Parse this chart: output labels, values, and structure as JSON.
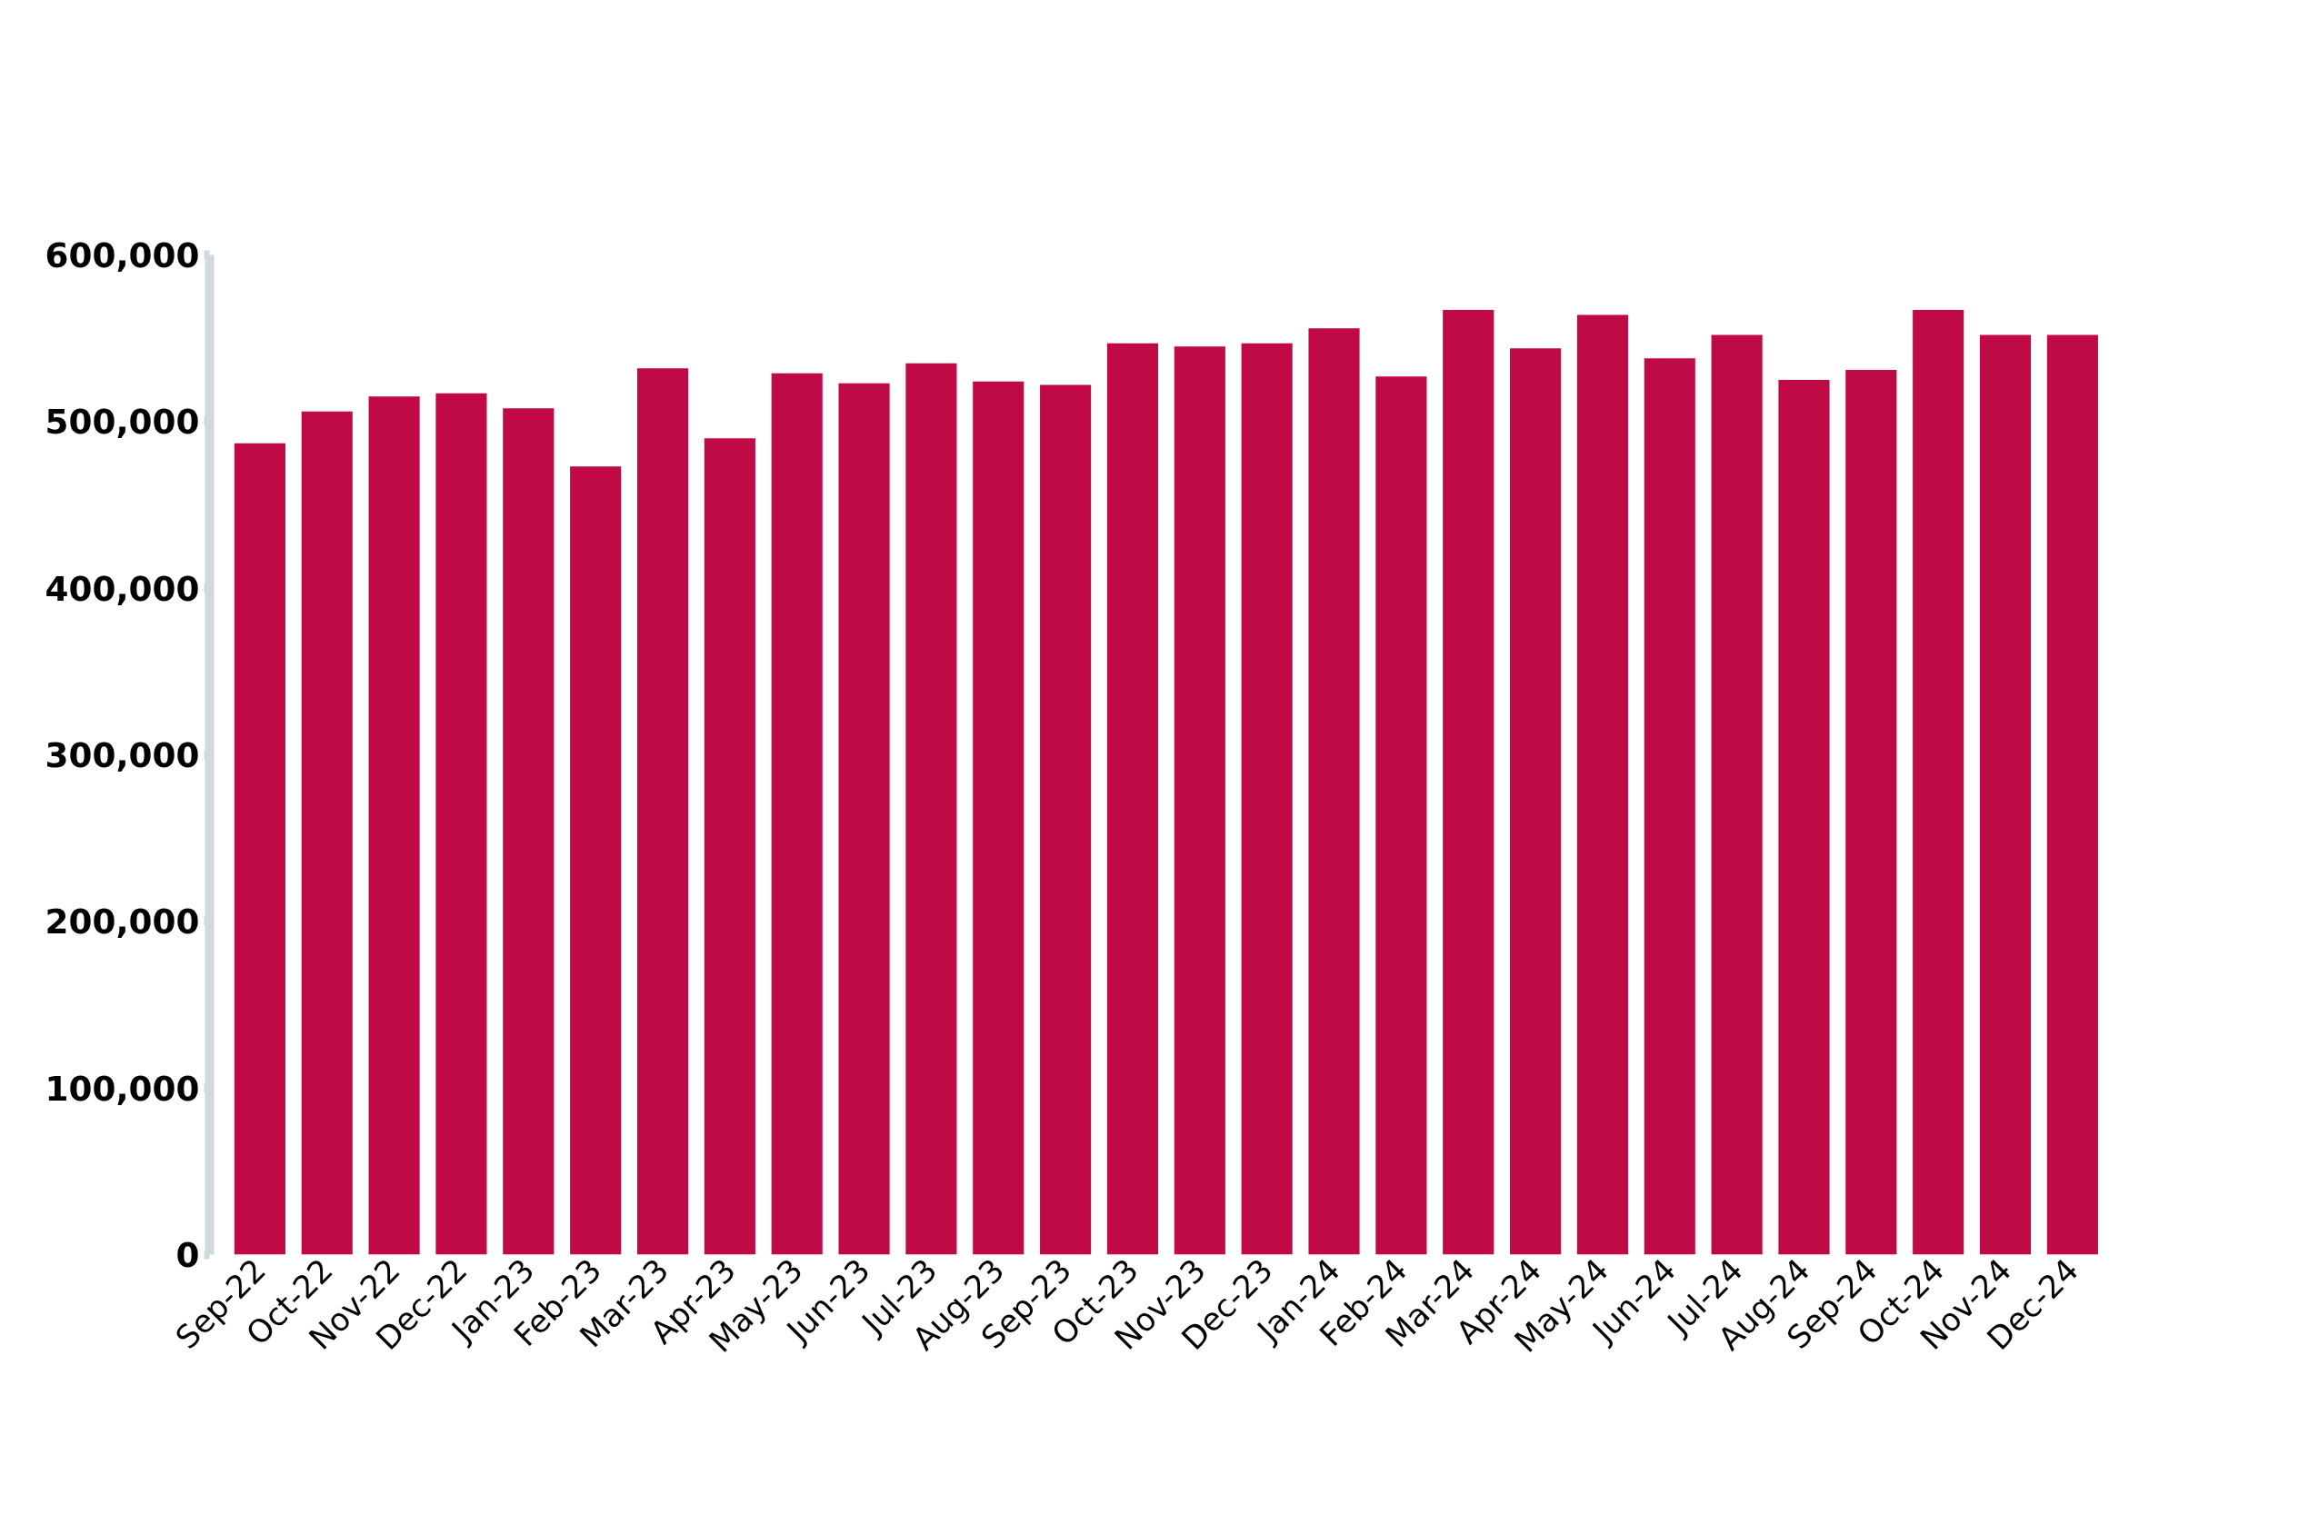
{
  "chart_data": {
    "type": "bar",
    "categories": [
      "Sep-22",
      "Oct-22",
      "Nov-22",
      "Dec-22",
      "Jan-23",
      "Feb-23",
      "Mar-23",
      "Apr-23",
      "May-23",
      "Jun-23",
      "Jul-23",
      "Aug-23",
      "Sep-23",
      "Oct-23",
      "Nov-23",
      "Dec-23",
      "Jan-24",
      "Feb-24",
      "Mar-24",
      "Apr-24",
      "May-24",
      "Jun-24",
      "Jul-24",
      "Aug-24",
      "Sep-24",
      "Oct-24",
      "Nov-24",
      "Dec-24"
    ],
    "values": [
      487000,
      506000,
      515000,
      517000,
      508000,
      473000,
      532000,
      490000,
      529000,
      523000,
      535000,
      524000,
      522000,
      547000,
      545000,
      547000,
      556000,
      527000,
      567000,
      544000,
      564000,
      538000,
      552000,
      525000,
      531000,
      567000,
      552000,
      552000
    ],
    "color": "#c00a46",
    "ylim": [
      0,
      600000
    ],
    "yticks": [
      {
        "value": 0,
        "label": "0"
      },
      {
        "value": 100000,
        "label": "100,000"
      },
      {
        "value": 200000,
        "label": "200,000"
      },
      {
        "value": 300000,
        "label": "300,000"
      },
      {
        "value": 400000,
        "label": "400,000"
      },
      {
        "value": 500000,
        "label": "500,000"
      },
      {
        "value": 600000,
        "label": "600,000"
      }
    ],
    "grid": false
  }
}
